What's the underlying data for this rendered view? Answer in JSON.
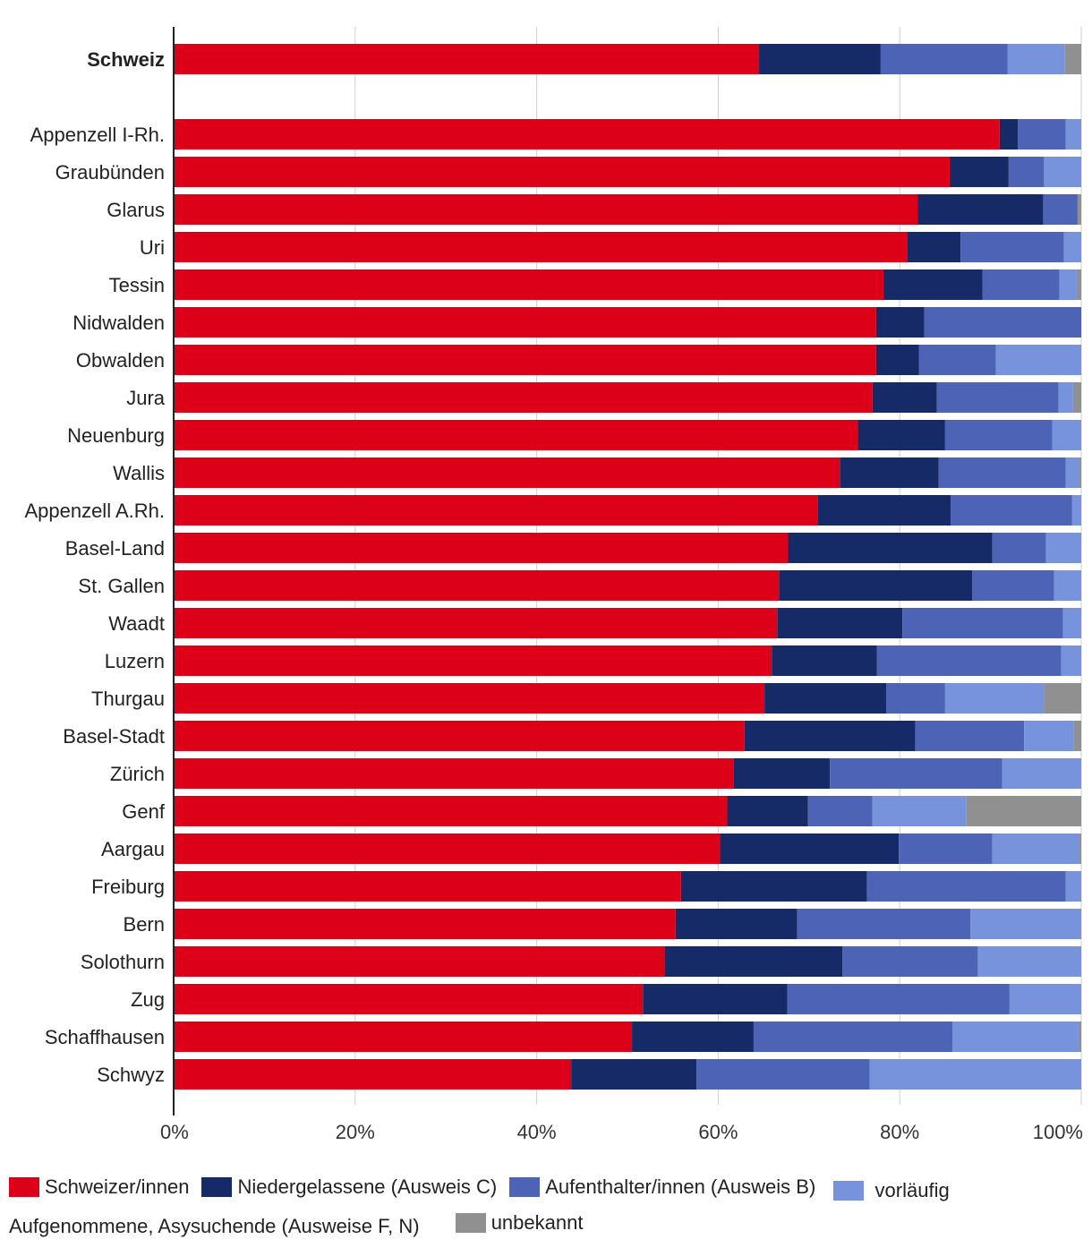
{
  "chart_data": {
    "type": "bar",
    "orientation": "horizontal",
    "stacked": true,
    "xlim": [
      0,
      100
    ],
    "xticks": [
      0,
      20,
      40,
      60,
      80,
      100
    ],
    "xtick_labels": [
      "0%",
      "20%",
      "40%",
      "60%",
      "80%",
      "100%"
    ],
    "grid": true,
    "legend_position": "bottom",
    "highlight_category": "Schweiz",
    "categories": [
      "Schweiz",
      "Appenzell I-Rh.",
      "Graubünden",
      "Glarus",
      "Uri",
      "Tessin",
      "Nidwalden",
      "Obwalden",
      "Jura",
      "Neuenburg",
      "Wallis",
      "Appenzell A.Rh.",
      "Basel-Land",
      "St. Gallen",
      "Waadt",
      "Luzern",
      "Thurgau",
      "Basel-Stadt",
      "Zürich",
      "Genf",
      "Aargau",
      "Freiburg",
      "Bern",
      "Solothurn",
      "Zug",
      "Schaffhausen",
      "Schwyz"
    ],
    "series": [
      {
        "name": "Schweizer/innen",
        "color": "#dc0018",
        "values": [
          64.5,
          91.0,
          85.5,
          82.0,
          80.8,
          78.2,
          77.4,
          77.4,
          77.0,
          75.4,
          73.4,
          71.0,
          67.7,
          66.7,
          66.5,
          65.9,
          65.1,
          62.9,
          61.7,
          61.0,
          60.2,
          55.9,
          55.3,
          54.1,
          51.7,
          50.5,
          43.8
        ]
      },
      {
        "name": "Niedergelassene (Ausweis C)",
        "color": "#172a68",
        "values": [
          13.4,
          2.0,
          6.5,
          13.8,
          5.9,
          10.9,
          5.3,
          4.7,
          7.1,
          9.6,
          10.9,
          14.6,
          22.5,
          21.3,
          13.8,
          11.6,
          13.4,
          18.8,
          10.6,
          8.9,
          19.7,
          20.5,
          13.4,
          19.6,
          15.9,
          13.4,
          13.8
        ]
      },
      {
        "name": "Aufenthalter/innen (Ausweis B)",
        "color": "#4c63b6",
        "values": [
          14.0,
          5.3,
          3.9,
          3.8,
          11.4,
          8.5,
          17.3,
          8.5,
          13.4,
          11.8,
          14.0,
          13.4,
          5.9,
          9.0,
          17.7,
          20.3,
          6.5,
          12.0,
          19.0,
          7.1,
          10.3,
          21.9,
          19.1,
          14.9,
          24.5,
          21.9,
          19.1
        ]
      },
      {
        "name": "vorläufig Aufgenommene, Asysuchende (Ausweise F, N)",
        "color": "#7793dc",
        "values": [
          6.3,
          1.7,
          4.1,
          0.0,
          1.9,
          1.9,
          0.0,
          9.4,
          1.6,
          3.2,
          1.5,
          1.0,
          3.9,
          3.0,
          2.0,
          2.2,
          10.9,
          5.5,
          8.7,
          10.3,
          9.6,
          1.7,
          12.2,
          11.4,
          7.9,
          13.9,
          23.3
        ]
      },
      {
        "name": "unbekannt",
        "color": "#909090",
        "values": [
          1.8,
          0.0,
          0.0,
          0.4,
          0.0,
          0.5,
          0.0,
          0.0,
          0.9,
          0.0,
          0.2,
          0.0,
          0.0,
          0.0,
          0.0,
          0.0,
          4.1,
          0.8,
          0.0,
          12.7,
          0.2,
          0.0,
          0.0,
          0.0,
          0.0,
          0.3,
          0.0
        ]
      }
    ]
  },
  "legend": {
    "items": [
      {
        "label": "Schweizer/innen",
        "color": "#dc0018"
      },
      {
        "label": "Niedergelassene (Ausweis C)",
        "color": "#172a68"
      },
      {
        "label": "Aufenthalter/innen (Ausweis B)",
        "color": "#4c63b6"
      },
      {
        "label": "vorläufig Aufgenommene, Asysuchende (Ausweise F, N)",
        "color": "#7793dc"
      },
      {
        "label": "unbekannt",
        "color": "#909090"
      }
    ]
  }
}
